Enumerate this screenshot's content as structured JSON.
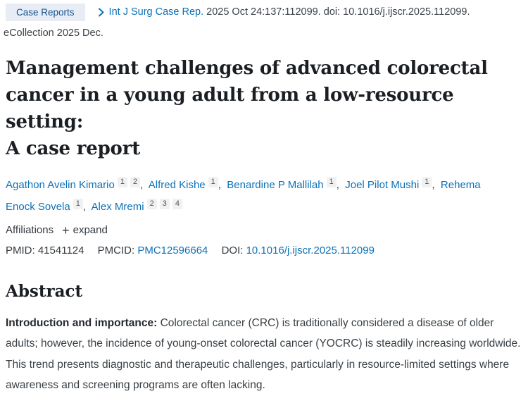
{
  "header": {
    "badge": "Case Reports",
    "journal_link": "Int J Surg Case Rep.",
    "citation_rest": "2025 Oct 24:137:112099. doi: 10.1016/j.ijscr.2025.112099.",
    "citation_line2": "eCollection 2025 Dec."
  },
  "title": {
    "full": "Management challenges of advanced colorectal cancer in a young adult from a low-resource setting: A case report",
    "lines": [
      "Management challenges of advanced colorectal",
      "cancer in a young adult from a low-resource setting:",
      "A case report"
    ]
  },
  "authors": [
    {
      "name": "Agathon Avelin Kimario",
      "sups": [
        "1",
        "2"
      ]
    },
    {
      "name": "Alfred Kishe",
      "sups": [
        "1"
      ]
    },
    {
      "name": "Benardine P Mallilah",
      "sups": [
        "1"
      ]
    },
    {
      "name": "Joel Pilot Mushi",
      "sups": [
        "1"
      ]
    },
    {
      "name": "Rehema Enock Sovela",
      "sups": [
        "1"
      ]
    },
    {
      "name": "Alex Mremi",
      "sups": [
        "2",
        "3",
        "4"
      ]
    }
  ],
  "affiliations": {
    "label": "Affiliations",
    "expand_label": "expand"
  },
  "ids": {
    "pmid_label": "PMID:",
    "pmid_value": "41541124",
    "pmcid_label": "PMCID:",
    "pmcid_value": "PMC12596664",
    "doi_label": "DOI:",
    "doi_value": "10.1016/j.ijscr.2025.112099"
  },
  "abstract": {
    "heading": "Abstract",
    "sections": [
      {
        "label": "Introduction and importance:",
        "text": "Colorectal cancer (CRC) is traditionally considered a disease of older adults; however, the incidence of young-onset colorectal cancer (YOCRC) is steadily increasing worldwide. This trend presents diagnostic and therapeutic challenges, particularly in resource-limited settings where awareness and screening programs are often lacking."
      }
    ]
  },
  "colors": {
    "link_blue": "#0b72b9",
    "badge_background": "#e8edf5",
    "badge_text": "#14548f",
    "chip_background": "#f1f1f1",
    "heading_text": "#1b1f23",
    "body_text": "#3a4045"
  }
}
